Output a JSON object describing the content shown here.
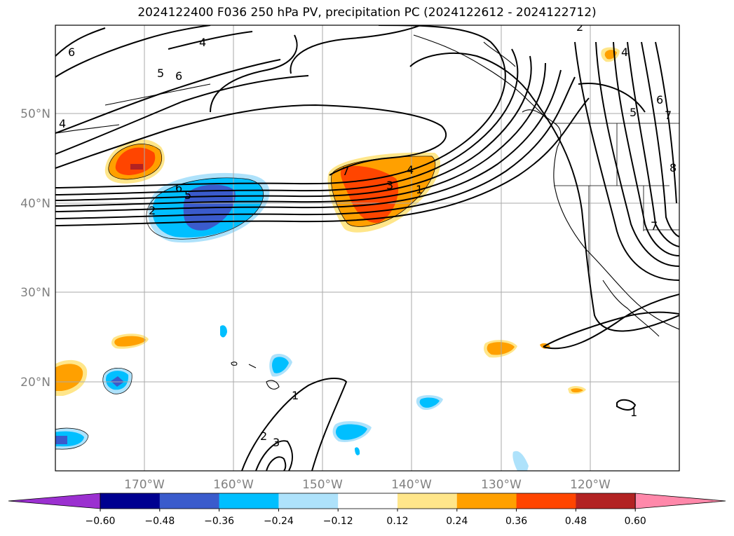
{
  "title": "2024122400 F036 250 hPa PV, precipitation PC (2024122612 - 2024122712)",
  "lon_labels": [
    "170°W",
    "160°W",
    "150°W",
    "140°W",
    "130°W",
    "120°W"
  ],
  "lat_labels": [
    "50°N",
    "40°N",
    "30°N",
    "20°N"
  ],
  "colorbar": {
    "ticks": [
      "−0.60",
      "−0.48",
      "−0.36",
      "−0.24",
      "−0.12",
      "0.12",
      "0.24",
      "0.36",
      "0.48",
      "0.60"
    ],
    "colors": [
      "#9b30d0",
      "#000090",
      "#3a5bcc",
      "#00bfff",
      "#aee2fb",
      "#ffffff",
      "#ffe68a",
      "#ffa000",
      "#ff4500",
      "#b22222",
      "#ff88aa"
    ]
  },
  "contour_labels": [
    {
      "text": "6"
    },
    {
      "text": "4"
    },
    {
      "text": "5"
    },
    {
      "text": "6"
    },
    {
      "text": "4"
    },
    {
      "text": "6"
    },
    {
      "text": "5"
    },
    {
      "text": "2"
    },
    {
      "text": "7"
    },
    {
      "text": "4"
    },
    {
      "text": "3"
    },
    {
      "text": "1"
    },
    {
      "text": "2"
    },
    {
      "text": "4"
    },
    {
      "text": "6"
    },
    {
      "text": "7"
    },
    {
      "text": "5"
    },
    {
      "text": "8"
    },
    {
      "text": "7"
    },
    {
      "text": "1"
    },
    {
      "text": "2"
    },
    {
      "text": "3"
    },
    {
      "text": "1"
    }
  ]
}
